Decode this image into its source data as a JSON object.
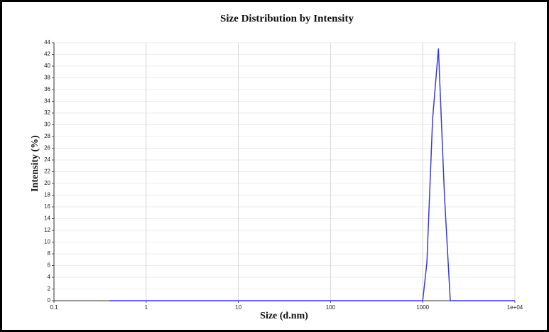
{
  "chart_data": {
    "type": "line",
    "title": "Size Distribution by Intensity",
    "x_label": "Size (d.nm)",
    "y_label": "Intensity (%)",
    "x_scale": "log",
    "grid": true,
    "xlim": [
      0.1,
      10000
    ],
    "xticks": [
      0.1,
      1,
      10,
      100,
      1000,
      {
        "value": 10000,
        "label": "1e+04"
      }
    ],
    "ylim": [
      0,
      44
    ],
    "yticks": [
      0,
      2,
      4,
      6,
      8,
      10,
      12,
      14,
      16,
      18,
      20,
      22,
      24,
      26,
      28,
      30,
      32,
      34,
      36,
      38,
      40,
      42,
      44
    ],
    "x": [
      0.4,
      1000,
      1110,
      1280,
      1480,
      1720,
      1990,
      10000
    ],
    "series": [
      {
        "name": "Intensity",
        "color": "#3a3ae0",
        "values": [
          0,
          0,
          6.5,
          31,
          43,
          18,
          0,
          0
        ]
      }
    ]
  }
}
